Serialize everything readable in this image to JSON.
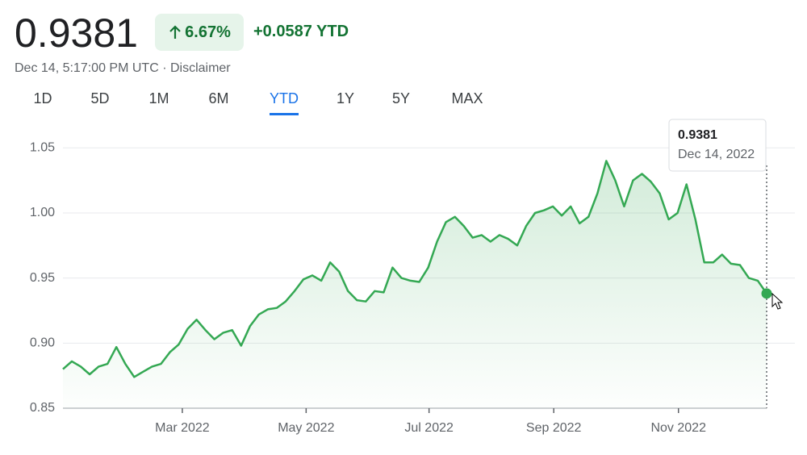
{
  "header": {
    "price": "0.9381",
    "change_pct": "6.67%",
    "change_abs": "+0.0587 YTD",
    "timestamp": "Dec 14, 5:17:00 PM UTC · Disclaimer"
  },
  "tabs": {
    "items": [
      "1D",
      "5D",
      "1M",
      "6M",
      "YTD",
      "1Y",
      "5Y",
      "MAX"
    ],
    "selected": "YTD"
  },
  "chart_data": {
    "type": "line",
    "series": [
      {
        "name": "Price",
        "color": "#34a853",
        "values": [
          0.88,
          0.886,
          0.882,
          0.876,
          0.882,
          0.884,
          0.897,
          0.884,
          0.874,
          0.878,
          0.882,
          0.884,
          0.893,
          0.899,
          0.911,
          0.918,
          0.91,
          0.903,
          0.908,
          0.91,
          0.898,
          0.913,
          0.922,
          0.926,
          0.927,
          0.932,
          0.94,
          0.949,
          0.952,
          0.948,
          0.962,
          0.955,
          0.94,
          0.933,
          0.932,
          0.94,
          0.939,
          0.958,
          0.95,
          0.948,
          0.947,
          0.958,
          0.978,
          0.993,
          0.997,
          0.99,
          0.981,
          0.983,
          0.978,
          0.983,
          0.98,
          0.975,
          0.99,
          1.0,
          1.002,
          1.005,
          0.998,
          1.005,
          0.992,
          0.997,
          1.015,
          1.04,
          1.025,
          1.005,
          1.025,
          1.03,
          1.024,
          1.015,
          0.995,
          1.0,
          1.022,
          0.995,
          0.962,
          0.962,
          0.968,
          0.961,
          0.96,
          0.95,
          0.948,
          0.9381
        ]
      }
    ],
    "ylim": [
      0.85,
      1.07
    ],
    "yticks": [
      0.85,
      {
        "value": 0.9,
        "label": "0.90"
      },
      0.95,
      {
        "value": 1.0,
        "label": "1.00"
      },
      1.05
    ],
    "xticks": [
      {
        "value": 13.4,
        "label": "Mar 2022"
      },
      {
        "value": 27.3,
        "label": "May 2022"
      },
      {
        "value": 41.1,
        "label": "Jul 2022"
      },
      {
        "value": 55.1,
        "label": "Sep 2022"
      },
      {
        "value": 69.1,
        "label": "Nov 2022"
      }
    ],
    "grid": true,
    "tooltip": {
      "date": "Dec 14, 2022"
    }
  }
}
